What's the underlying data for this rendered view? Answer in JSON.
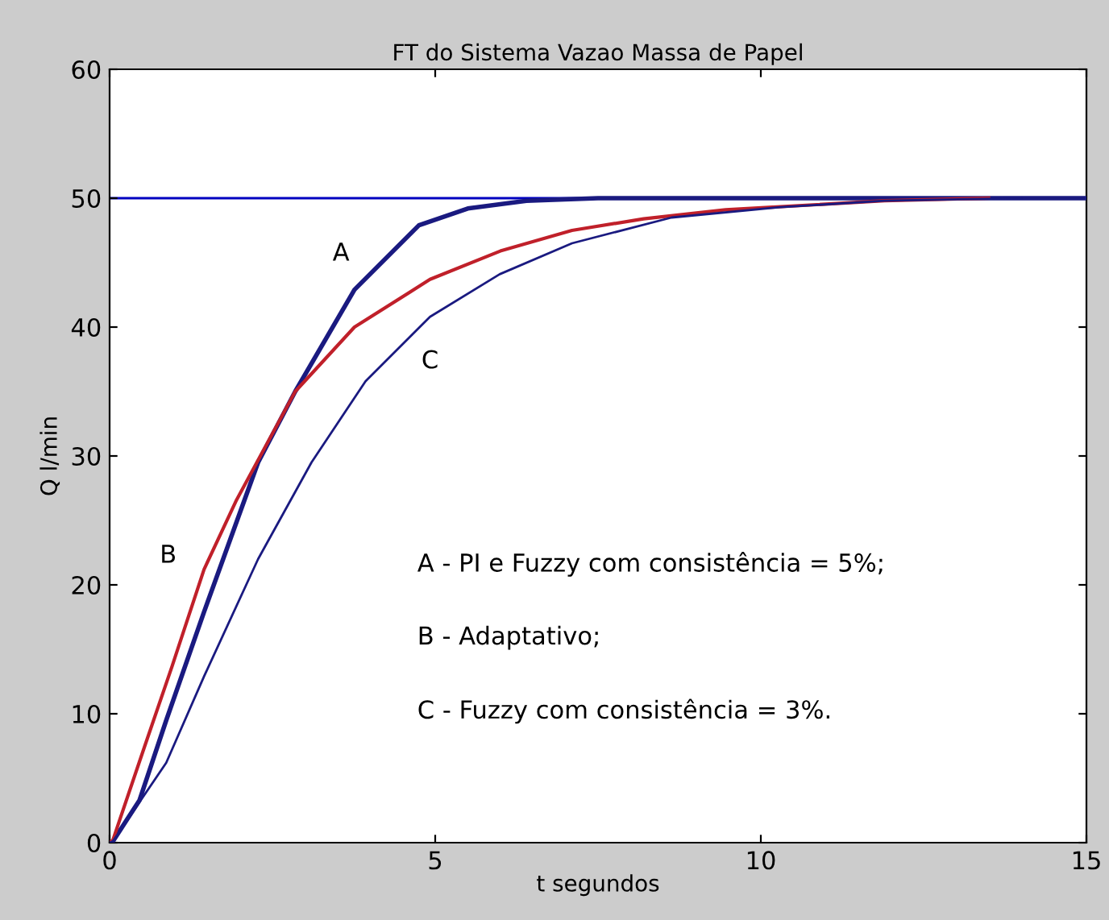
{
  "chart_data": {
    "type": "line",
    "title": "FT do Sistema Vazao Massa de Papel",
    "xlabel": "t segundos",
    "ylabel": "Q l/min",
    "series": [
      {
        "name": "A",
        "color": "#1a1a80",
        "x": [
          0,
          0.05,
          0.46,
          0.87,
          1.45,
          2.28,
          2.85,
          3.76,
          4.75,
          5.5,
          6.4,
          7.5,
          10,
          15
        ],
        "values": [
          0,
          0.1,
          3.3,
          9.5,
          17.9,
          29.5,
          35,
          42.9,
          47.9,
          49.2,
          49.8,
          50,
          50,
          50
        ]
      },
      {
        "name": "B",
        "color": "#c0202a",
        "x": [
          0,
          0.05,
          0.54,
          0.96,
          1.45,
          1.95,
          2.85,
          3.76,
          4.92,
          6,
          7.1,
          8.2,
          9.46,
          11.9,
          13.5
        ],
        "values": [
          0,
          0.2,
          7.5,
          13.7,
          21.2,
          26.6,
          35,
          40,
          43.7,
          45.9,
          47.5,
          48.4,
          49.1,
          49.8,
          50
        ]
      },
      {
        "name": "C",
        "color": "#1a1a80",
        "x": [
          0,
          0.05,
          0.87,
          1.45,
          2.28,
          3.1,
          3.93,
          4.92,
          5.99,
          7.1,
          8.63,
          10.3,
          11.9,
          14
        ],
        "values": [
          0,
          0.1,
          6.2,
          12.9,
          22,
          29.5,
          35.8,
          40.8,
          44.1,
          46.5,
          48.5,
          49.3,
          49.8,
          50
        ]
      }
    ],
    "ref_lines": [
      {
        "axis": "y",
        "value": 50,
        "color": "#0000c0"
      }
    ],
    "annotations": [
      "A - PI e Fuzzy com consistência = 5%;",
      "B - Adaptativo;",
      "C - Fuzzy com consistência = 3%."
    ],
    "xlim": [
      0,
      15
    ],
    "ylim": [
      0,
      60
    ],
    "xticks": [
      0,
      5,
      10,
      15
    ],
    "yticks": [
      0,
      10,
      20,
      30,
      40,
      50,
      60
    ],
    "grid": false,
    "marker": "none",
    "line_style": "solid"
  }
}
